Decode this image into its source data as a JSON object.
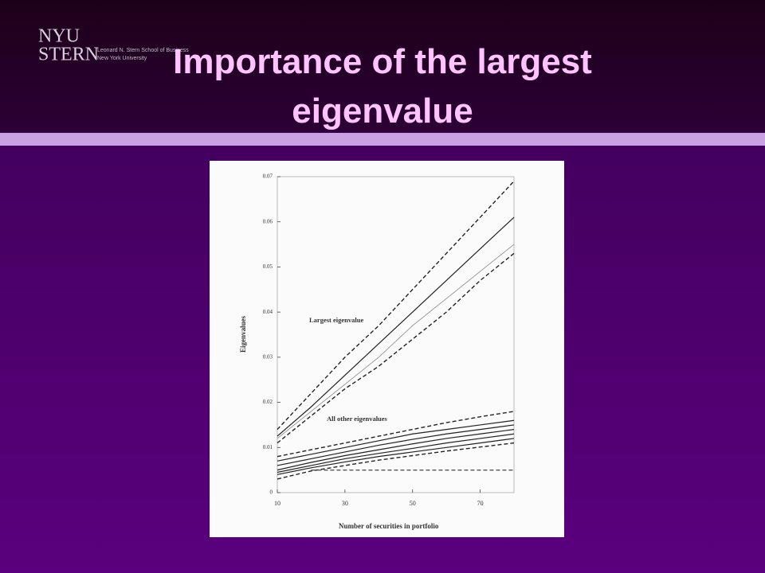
{
  "slide": {
    "title": "Importance of the largest eigenvalue",
    "logo": {
      "top": "NYU",
      "bottom": "STERN",
      "lines": [
        "Leonard N. Stern School of Business",
        "New York University"
      ]
    }
  },
  "chart_data": {
    "type": "line",
    "x_label": "Number of securities in portfolio",
    "y_label": "Eigenvalues",
    "annotations": [
      "Largest eigenvalue",
      "All other eigenvalues"
    ],
    "x": [
      10,
      20,
      30,
      40,
      50,
      60,
      70,
      80
    ],
    "xlim": [
      10,
      80
    ],
    "xticks": [
      10,
      30,
      50,
      70
    ],
    "ylim": [
      0,
      0.07
    ],
    "yticks": [
      0,
      0.01,
      0.02,
      0.03,
      0.04,
      0.05,
      0.06,
      0.07
    ],
    "series": [
      {
        "color": "#222222",
        "style": "dashed",
        "values": [
          0.014,
          0.022,
          0.03,
          0.037,
          0.045,
          0.053,
          0.061,
          0.069
        ]
      },
      {
        "color": "#222222",
        "style": "solid",
        "values": [
          0.0125,
          0.019,
          0.026,
          0.033,
          0.04,
          0.047,
          0.054,
          0.061
        ]
      },
      {
        "color": "#888888",
        "style": "thin",
        "values": [
          0.012,
          0.018,
          0.024,
          0.03,
          0.037,
          0.043,
          0.049,
          0.055
        ]
      },
      {
        "color": "#222222",
        "style": "dashed",
        "values": [
          0.011,
          0.017,
          0.023,
          0.028,
          0.034,
          0.04,
          0.047,
          0.053
        ]
      },
      {
        "color": "#222222",
        "style": "dashed",
        "values": [
          0.008,
          0.0095,
          0.011,
          0.0125,
          0.014,
          0.0155,
          0.0168,
          0.018
        ]
      },
      {
        "color": "#222222",
        "style": "solid",
        "values": [
          0.007,
          0.0085,
          0.01,
          0.0115,
          0.013,
          0.014,
          0.015,
          0.016
        ]
      },
      {
        "color": "#222222",
        "style": "solid",
        "values": [
          0.006,
          0.0075,
          0.009,
          0.0105,
          0.0118,
          0.013,
          0.014,
          0.015
        ]
      },
      {
        "color": "#222222",
        "style": "solid",
        "values": [
          0.005,
          0.0067,
          0.0082,
          0.0095,
          0.0108,
          0.012,
          0.013,
          0.014
        ]
      },
      {
        "color": "#222222",
        "style": "solid",
        "values": [
          0.0045,
          0.006,
          0.0075,
          0.0087,
          0.0098,
          0.011,
          0.012,
          0.013
        ]
      },
      {
        "color": "#222222",
        "style": "solid",
        "values": [
          0.004,
          0.0055,
          0.0068,
          0.008,
          0.009,
          0.01,
          0.011,
          0.012
        ]
      },
      {
        "color": "#222222",
        "style": "dashed",
        "values": [
          0.003,
          0.0048,
          0.006,
          0.0072,
          0.0082,
          0.0092,
          0.0101,
          0.011
        ]
      },
      {
        "color": "#555555",
        "style": "dashed",
        "values": [
          null,
          0.005,
          0.005,
          0.005,
          0.005,
          0.005,
          0.005,
          0.005
        ]
      }
    ]
  }
}
